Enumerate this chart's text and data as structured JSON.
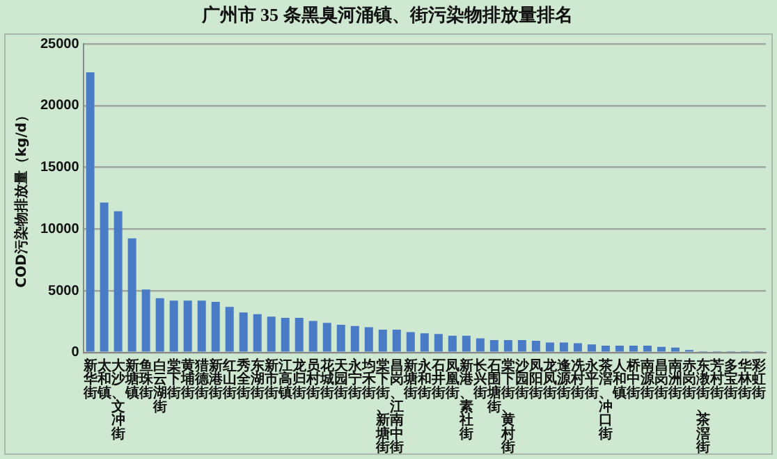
{
  "chart_data": {
    "type": "bar",
    "title": "广州市 35 条黑臭河涌镇、街污染物排放量排名",
    "ylabel": "COD污染物排放量（kg/d）",
    "categories": [
      "新华街",
      "太和镇",
      "大沙、文冲街",
      "新塘镇",
      "鱼珠街",
      "白云湖街",
      "棠下街",
      "黄埔街",
      "猎德街",
      "新港街",
      "红山街",
      "秀全街",
      "东湖街",
      "新市街",
      "江高镇",
      "龙归街",
      "员村街",
      "花城街",
      "天园街",
      "永宁街",
      "均禾街",
      "棠下街、新塘街",
      "昌岗、江南中街",
      "新塘街",
      "永和街",
      "石井街",
      "凤凰街",
      "新港、素社街",
      "长兴街",
      "石围塘街",
      "棠下街、黄村街",
      "沙园街",
      "凤阳街",
      "龙凤街",
      "逢源街",
      "冼村街",
      "永平街",
      "茶滘、冲口街",
      "人和镇",
      "桥中街",
      "南源街",
      "昌岗街",
      "南洲街",
      "赤岗街",
      "东漖街、茶滘街",
      "芳村街",
      "多宝街",
      "华林街",
      "彩虹街"
    ],
    "values": [
      22700,
      12150,
      11450,
      9250,
      5100,
      4400,
      4200,
      4200,
      4200,
      4100,
      3700,
      3250,
      3100,
      2900,
      2800,
      2800,
      2550,
      2400,
      2250,
      2150,
      2050,
      1850,
      1850,
      1650,
      1550,
      1500,
      1350,
      1350,
      1150,
      1000,
      1000,
      1000,
      950,
      800,
      800,
      750,
      650,
      550,
      550,
      550,
      550,
      450,
      400,
      200,
      100,
      100,
      100,
      100,
      100
    ],
    "color": "#4a7cc6",
    "ylim": [
      0,
      25000
    ],
    "yticks": [
      0,
      5000,
      10000,
      15000,
      20000,
      25000
    ],
    "grid": "y"
  }
}
